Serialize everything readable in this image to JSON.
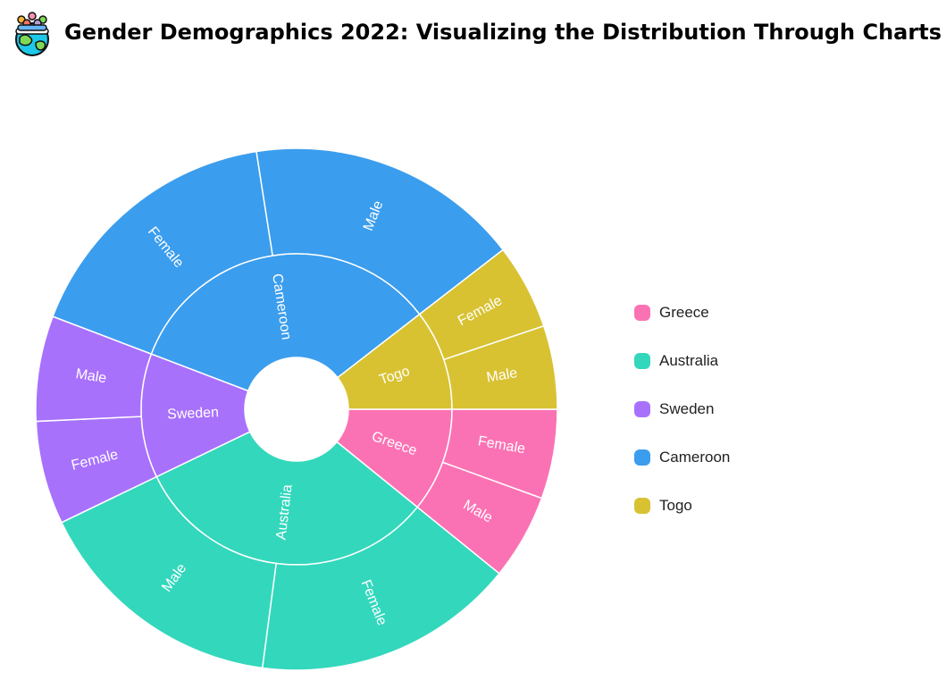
{
  "header": {
    "title": "Gender Demographics 2022: Visualizing the Distribution Through Charts",
    "logo_icon": "people-globe-icon"
  },
  "chart_data": {
    "type": "sunburst",
    "title": "Gender Demographics 2022: Visualizing the Distribution Through Charts",
    "legend_position": "right",
    "legend": [
      "Greece",
      "Australia",
      "Sweden",
      "Cameroon",
      "Togo"
    ],
    "colors": {
      "Greece": "#fb72b4",
      "Australia": "#33d7bc",
      "Sweden": "#a871fc",
      "Cameroon": "#3b9ded",
      "Togo": "#d8c232"
    },
    "nodes": [
      {
        "name": "Greece",
        "value": 8.8,
        "children": [
          {
            "name": "Female",
            "value": 4.5
          },
          {
            "name": "Male",
            "value": 4.3
          }
        ]
      },
      {
        "name": "Australia",
        "value": 26.0,
        "children": [
          {
            "name": "Female",
            "value": 13.2
          },
          {
            "name": "Male",
            "value": 12.8
          }
        ]
      },
      {
        "name": "Sweden",
        "value": 10.5,
        "children": [
          {
            "name": "Female",
            "value": 5.2
          },
          {
            "name": "Male",
            "value": 5.3
          }
        ]
      },
      {
        "name": "Cameroon",
        "value": 27.4,
        "children": [
          {
            "name": "Female",
            "value": 13.6
          },
          {
            "name": "Male",
            "value": 13.8
          }
        ]
      },
      {
        "name": "Togo",
        "value": 8.5,
        "children": [
          {
            "name": "Female",
            "value": 4.3
          },
          {
            "name": "Male",
            "value": 4.2
          }
        ]
      }
    ]
  }
}
